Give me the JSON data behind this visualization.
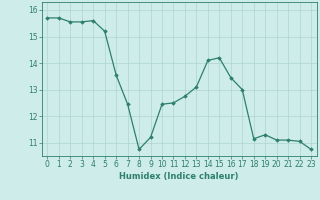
{
  "x": [
    0,
    1,
    2,
    3,
    4,
    5,
    6,
    7,
    8,
    9,
    10,
    11,
    12,
    13,
    14,
    15,
    16,
    17,
    18,
    19,
    20,
    21,
    22,
    23
  ],
  "y": [
    15.7,
    15.7,
    15.55,
    15.55,
    15.6,
    15.2,
    13.55,
    12.45,
    10.75,
    11.2,
    12.45,
    12.5,
    12.75,
    13.1,
    14.1,
    14.2,
    13.45,
    13.0,
    11.15,
    11.3,
    11.1,
    11.1,
    11.05,
    10.75
  ],
  "line_color": "#2e7f6e",
  "marker": "D",
  "marker_size": 1.8,
  "bg_color": "#ceecea",
  "grid_color": "#aed4d0",
  "xlabel": "Humidex (Indice chaleur)",
  "xlim": [
    -0.5,
    23.5
  ],
  "ylim": [
    10.5,
    16.3
  ],
  "yticks": [
    11,
    12,
    13,
    14,
    15,
    16
  ],
  "xticks": [
    0,
    1,
    2,
    3,
    4,
    5,
    6,
    7,
    8,
    9,
    10,
    11,
    12,
    13,
    14,
    15,
    16,
    17,
    18,
    19,
    20,
    21,
    22,
    23
  ],
  "axis_fontsize": 5.5,
  "label_fontsize": 6.0,
  "tick_color": "#2e7f6e",
  "spine_color": "#2e7f6e"
}
